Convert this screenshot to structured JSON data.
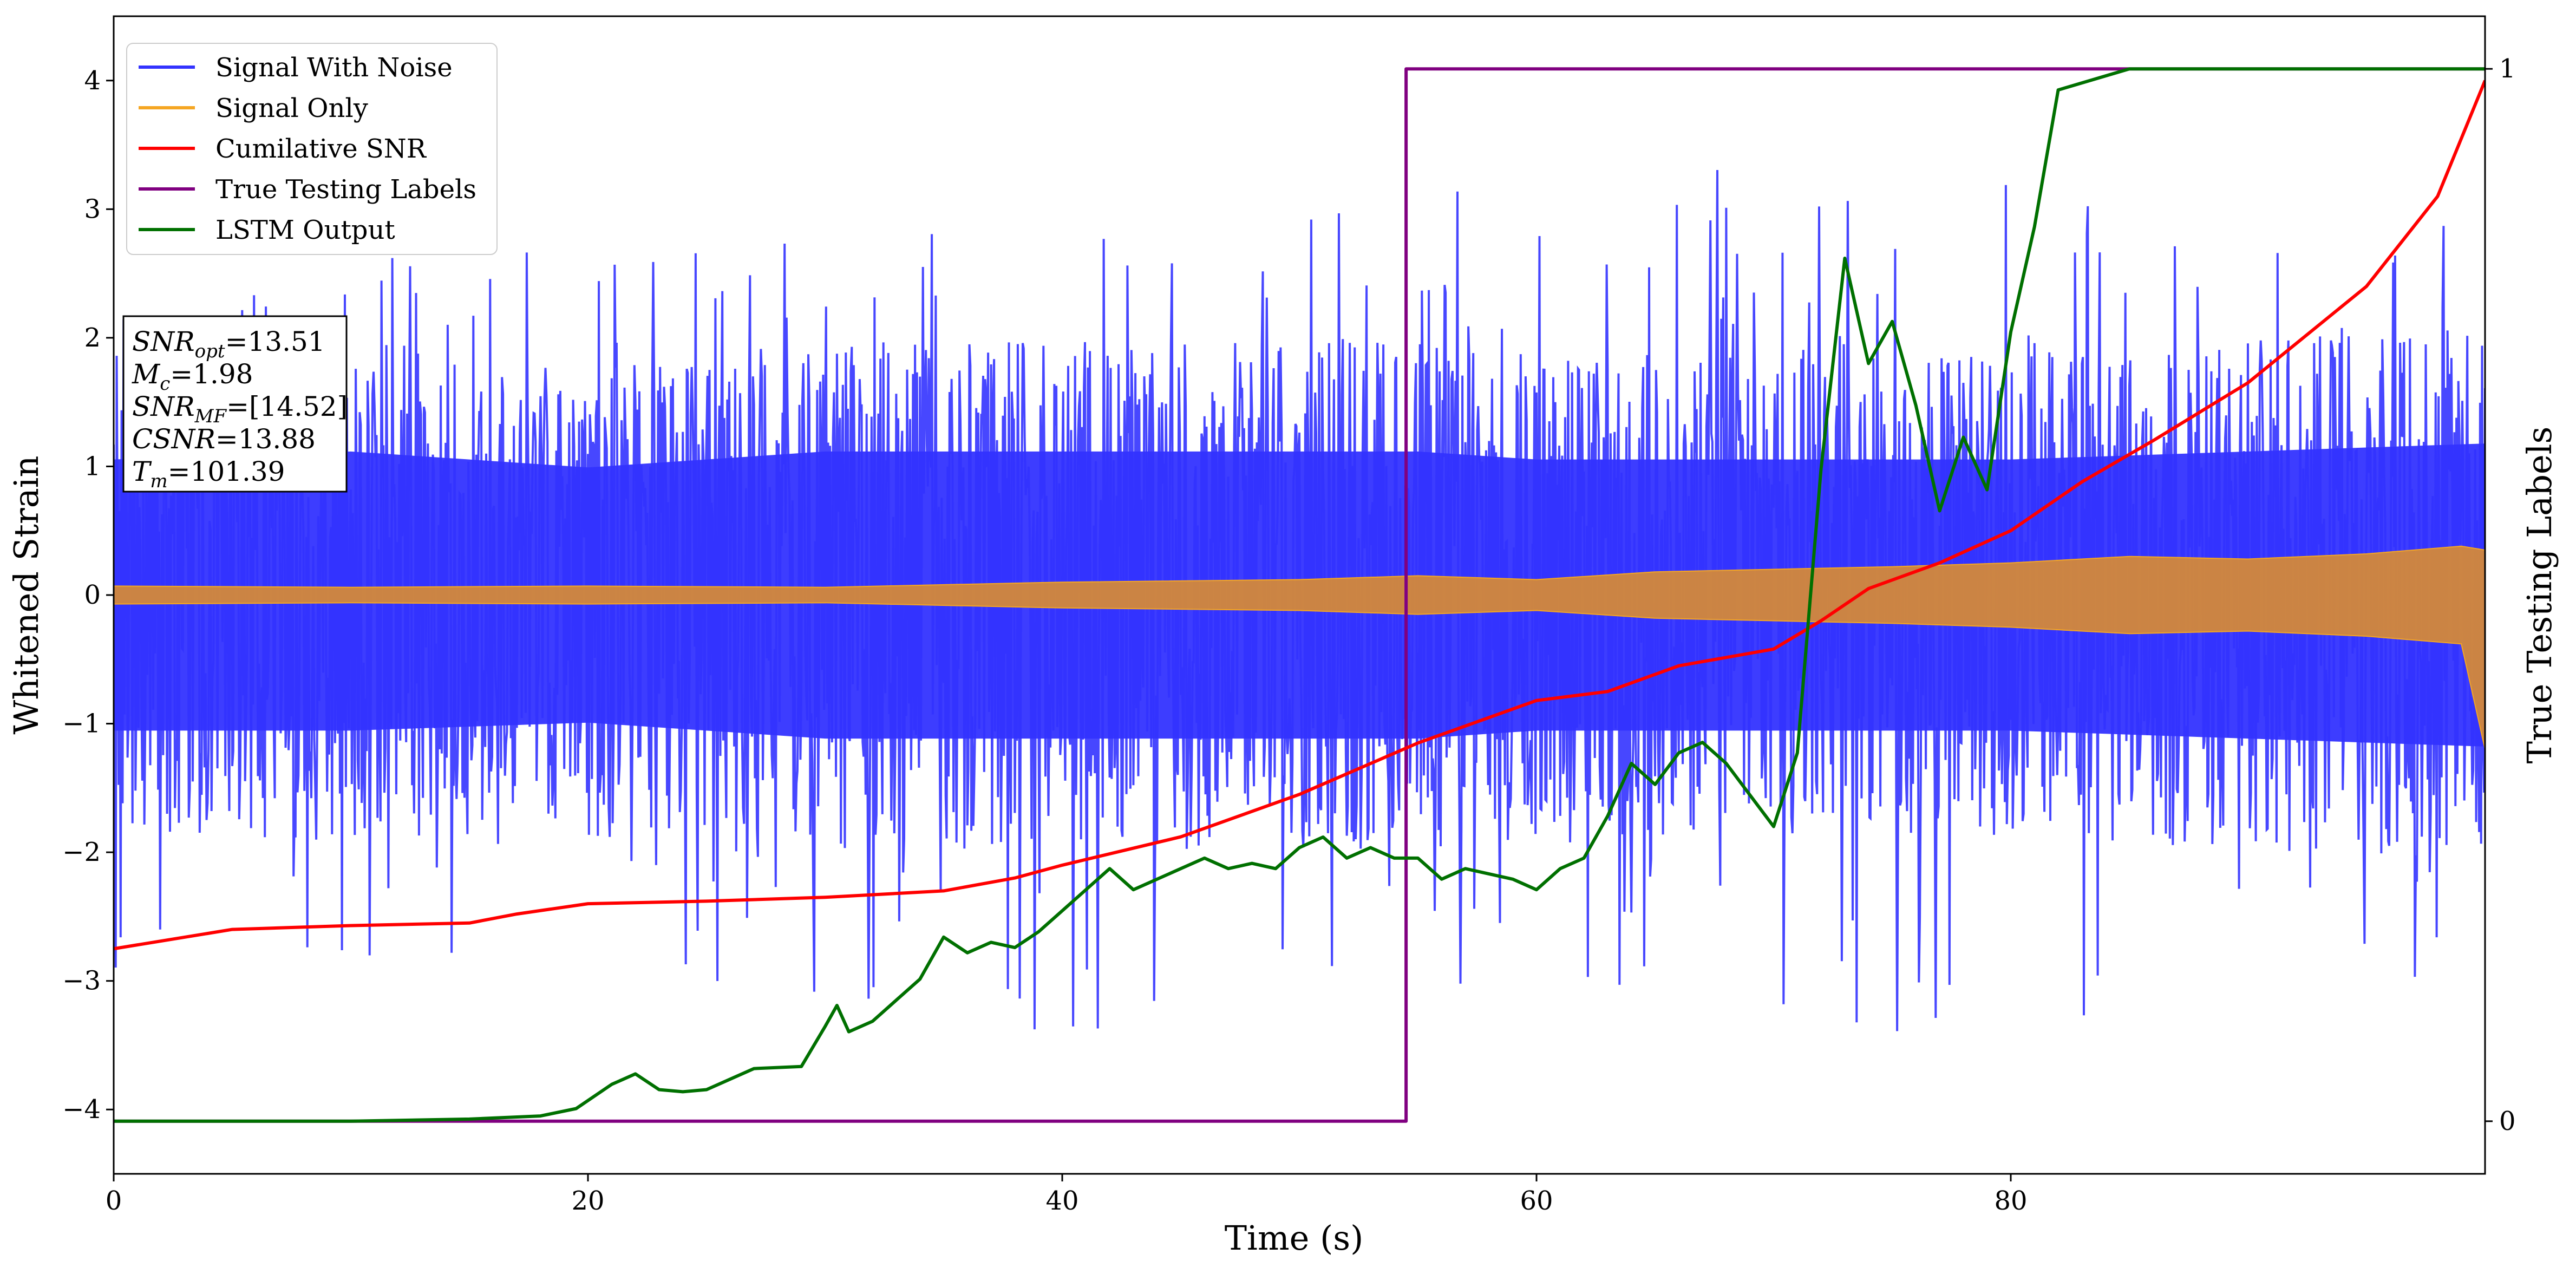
{
  "chart_data": {
    "type": "line",
    "title": "",
    "xlabel": "Time (s)",
    "ylabel": "Whitened Strain",
    "ylabel_right": "True Testing Labels",
    "xlim": [
      0,
      100
    ],
    "ylim": [
      -4.5,
      4.5
    ],
    "ylim_right": [
      -0.05,
      1.05
    ],
    "xticks": [
      0,
      20,
      40,
      60,
      80
    ],
    "yticks": [
      4,
      3,
      2,
      1,
      0,
      -1,
      -2,
      -3,
      -4
    ],
    "yticks_right": [
      1,
      0
    ],
    "legend_position": "top-left",
    "grid": false,
    "series": [
      {
        "name": "Signal With Noise",
        "color": "#3333ff",
        "style": "noise-band",
        "x": [
          0,
          10,
          20,
          30,
          40,
          50,
          55,
          60,
          70,
          80,
          90,
          100
        ],
        "typical_upper": [
          1.7,
          1.8,
          1.6,
          1.8,
          1.8,
          1.8,
          1.8,
          1.7,
          1.7,
          1.7,
          1.8,
          1.9
        ],
        "typical_lower": [
          -1.7,
          -1.7,
          -1.6,
          -1.8,
          -1.8,
          -1.8,
          -1.8,
          -1.7,
          -1.7,
          -1.7,
          -1.8,
          -1.9
        ],
        "peak_upper": [
          3.0,
          2.9,
          2.7,
          2.9,
          2.9,
          2.9,
          3.2,
          3.5,
          3.3,
          3.4,
          3.1,
          2.9
        ],
        "peak_lower": [
          -2.9,
          -2.8,
          -2.9,
          -3.1,
          -3.5,
          -3.3,
          -3.3,
          -3.1,
          -3.2,
          -3.7,
          -3.2,
          -3.5
        ]
      },
      {
        "name": "Signal Only",
        "color": "#f5a623",
        "style": "band",
        "x": [
          0,
          10,
          20,
          30,
          40,
          50,
          55,
          60,
          65,
          70,
          75,
          80,
          85,
          90,
          95,
          99,
          100
        ],
        "upper": [
          0.07,
          0.06,
          0.07,
          0.06,
          0.1,
          0.12,
          0.15,
          0.12,
          0.18,
          0.2,
          0.22,
          0.25,
          0.3,
          0.28,
          0.32,
          0.38,
          0.35
        ],
        "lower": [
          -0.07,
          -0.06,
          -0.07,
          -0.06,
          -0.1,
          -0.12,
          -0.15,
          -0.12,
          -0.18,
          -0.2,
          -0.22,
          -0.25,
          -0.3,
          -0.28,
          -0.32,
          -0.38,
          -1.2
        ]
      },
      {
        "name": "Cumilative SNR",
        "color": "#ff0000",
        "axis": "left",
        "x": [
          0,
          5,
          10,
          15,
          17,
          20,
          25,
          30,
          35,
          38,
          40,
          45,
          50,
          55,
          60,
          63,
          66,
          70,
          72,
          74,
          77,
          80,
          83,
          86,
          90,
          95,
          98,
          100
        ],
        "y": [
          -2.75,
          -2.6,
          -2.57,
          -2.55,
          -2.48,
          -2.4,
          -2.38,
          -2.35,
          -2.3,
          -2.2,
          -2.1,
          -1.88,
          -1.55,
          -1.15,
          -0.82,
          -0.75,
          -0.55,
          -0.42,
          -0.2,
          0.05,
          0.25,
          0.5,
          0.88,
          1.2,
          1.65,
          2.4,
          3.1,
          4.0
        ]
      },
      {
        "name": "True Testing Labels",
        "color": "#800080",
        "axis": "right",
        "x": [
          0,
          54.5,
          54.5,
          100
        ],
        "y": [
          0,
          0,
          1,
          1
        ]
      },
      {
        "name": "LSTM Output",
        "color": "#007000",
        "axis": "right",
        "x": [
          0,
          10,
          15,
          18,
          19.5,
          21,
          22,
          23,
          24,
          25,
          27,
          29,
          30,
          30.5,
          31,
          32,
          33,
          34,
          35,
          36,
          37,
          38,
          39,
          40,
          41,
          42,
          43,
          44,
          45,
          46,
          47,
          48,
          49,
          50,
          51,
          52,
          53,
          54,
          55,
          56,
          57,
          58,
          59,
          60,
          61,
          62,
          63,
          64,
          65,
          66,
          67,
          68,
          69,
          70,
          71,
          72,
          73,
          74,
          75,
          76,
          77,
          78,
          79,
          80,
          81,
          82,
          85,
          90,
          100
        ],
        "y": [
          0,
          0,
          0.002,
          0.005,
          0.012,
          0.035,
          0.045,
          0.03,
          0.028,
          0.03,
          0.05,
          0.052,
          0.09,
          0.11,
          0.085,
          0.095,
          0.115,
          0.135,
          0.175,
          0.16,
          0.17,
          0.165,
          0.18,
          0.2,
          0.22,
          0.24,
          0.22,
          0.23,
          0.24,
          0.25,
          0.24,
          0.245,
          0.24,
          0.26,
          0.27,
          0.25,
          0.26,
          0.25,
          0.25,
          0.23,
          0.24,
          0.235,
          0.23,
          0.22,
          0.24,
          0.25,
          0.29,
          0.34,
          0.32,
          0.35,
          0.36,
          0.34,
          0.31,
          0.28,
          0.35,
          0.62,
          0.82,
          0.72,
          0.76,
          0.68,
          0.58,
          0.65,
          0.6,
          0.75,
          0.85,
          0.98,
          1.0,
          1.0,
          1.0
        ]
      }
    ],
    "annotation_lines": [
      "SNR_opt=13.51",
      "M_c=1.98",
      "SNR_MF=[14.52]",
      "CSNR=13.88",
      "T_m=101.39"
    ]
  }
}
